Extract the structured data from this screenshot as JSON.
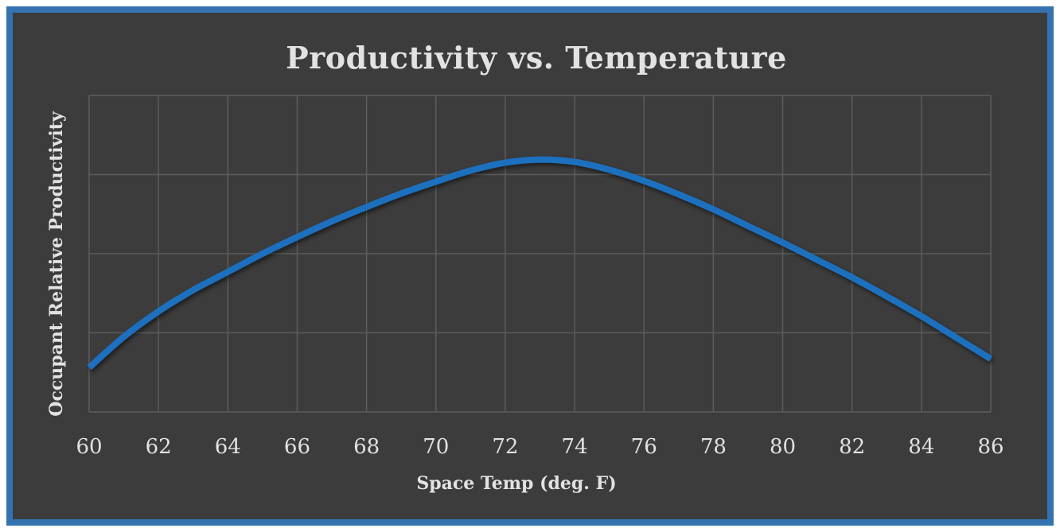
{
  "chart_data": {
    "type": "line",
    "title": "Productivity vs. Temperature",
    "xlabel": "Space Temp (deg. F)",
    "ylabel": "Occupant Relative Productivity",
    "xlim": [
      60,
      86
    ],
    "x_ticks": [
      "60",
      "62",
      "64",
      "66",
      "68",
      "70",
      "72",
      "74",
      "76",
      "78",
      "80",
      "82",
      "84",
      "86"
    ],
    "ylim": [
      0.8,
      1.0
    ],
    "y_tick_labels_shown": false,
    "grid": true,
    "legend": "none",
    "series": [
      {
        "color": "#1f6fbe",
        "x": [
          60,
          61,
          62,
          63,
          64,
          65,
          66,
          67,
          68,
          69,
          70,
          71,
          72,
          73,
          74,
          75,
          76,
          77,
          78,
          79,
          80,
          81,
          82,
          83,
          84,
          85,
          86
        ],
        "y": [
          0.828,
          0.8475,
          0.8635,
          0.877,
          0.8885,
          0.9,
          0.9105,
          0.9205,
          0.9295,
          0.938,
          0.9455,
          0.9525,
          0.9575,
          0.9595,
          0.958,
          0.953,
          0.946,
          0.9375,
          0.928,
          0.9175,
          0.907,
          0.896,
          0.885,
          0.873,
          0.8605,
          0.847,
          0.8335
        ]
      }
    ]
  },
  "colors": {
    "frame_border": "#3572b0",
    "background": "#3c3c3c",
    "gridline": "#5c5c5c",
    "text": "#e2e2e2"
  }
}
